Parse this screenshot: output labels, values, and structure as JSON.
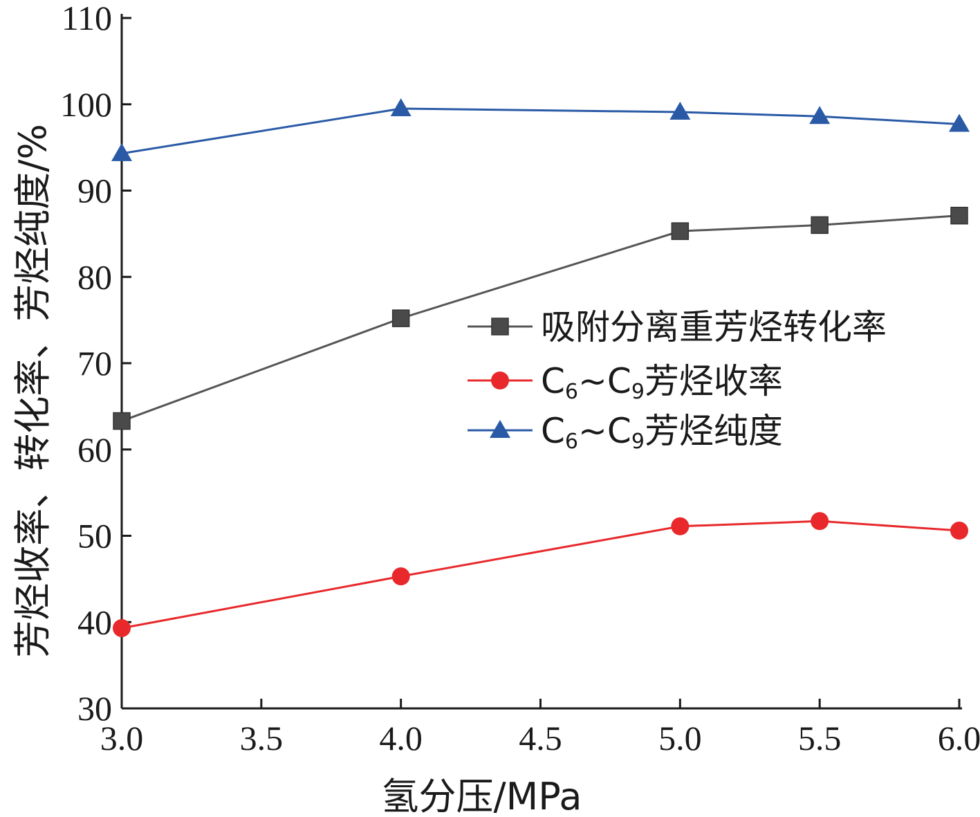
{
  "chart_data": {
    "type": "line",
    "xlabel": "氢分压/MPa",
    "ylabel": "芳烃收率、转化率、芳烃纯度/%",
    "xlim": [
      3.0,
      6.0
    ],
    "ylim": [
      30,
      110
    ],
    "xticks": [
      "3.0",
      "3.5",
      "4.0",
      "4.5",
      "5.0",
      "5.5",
      "6.0"
    ],
    "yticks": [
      "30",
      "40",
      "50",
      "60",
      "70",
      "80",
      "90",
      "100",
      "110"
    ],
    "legend_position": "center-right",
    "grid": false,
    "series": [
      {
        "name": "吸附分离重芳烃转化率",
        "marker": "square",
        "color": "#555555",
        "markerColor": "#4a4a4a",
        "x": [
          3.0,
          4.0,
          5.0,
          5.5,
          6.0
        ],
        "values": [
          63.3,
          75.2,
          85.3,
          86.0,
          87.1
        ]
      },
      {
        "name": "C6~C9芳烃收率",
        "legend_parts": [
          {
            "text": "C",
            "sub": false
          },
          {
            "text": "6",
            "sub": true
          },
          {
            "text": "~C",
            "sub": false
          },
          {
            "text": "9",
            "sub": true
          },
          {
            "text": "芳烃收率",
            "sub": false
          }
        ],
        "marker": "circle",
        "color": "#e8282b",
        "markerColor": "#e8282b",
        "x": [
          3.0,
          4.0,
          5.0,
          5.5,
          6.0
        ],
        "values": [
          39.3,
          45.3,
          51.1,
          51.7,
          50.6
        ]
      },
      {
        "name": "C6~C9芳烃纯度",
        "legend_parts": [
          {
            "text": "C",
            "sub": false
          },
          {
            "text": "6",
            "sub": true
          },
          {
            "text": "~C",
            "sub": false
          },
          {
            "text": "9",
            "sub": true
          },
          {
            "text": "芳烃纯度",
            "sub": false
          }
        ],
        "marker": "triangle",
        "color": "#2a5aa6",
        "markerColor": "#2a5aa6",
        "x": [
          3.0,
          4.0,
          5.0,
          5.5,
          6.0
        ],
        "values": [
          94.3,
          99.5,
          99.1,
          98.6,
          97.7
        ]
      }
    ]
  }
}
